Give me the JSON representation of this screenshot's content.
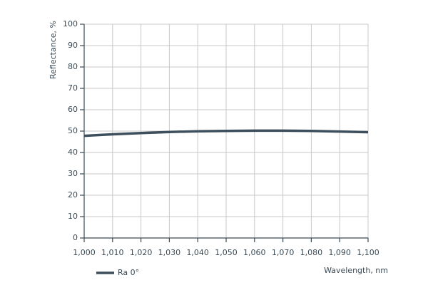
{
  "chart_data": {
    "type": "line",
    "y_label": "Reflectance, %",
    "x_label": "Wavelength, nm",
    "x": [
      1000,
      1010,
      1020,
      1030,
      1040,
      1050,
      1060,
      1070,
      1080,
      1090,
      1100
    ],
    "series": [
      {
        "name": "Ra 0°",
        "color": "#3d4f5c",
        "values": [
          47.8,
          48.5,
          49.1,
          49.6,
          49.9,
          50.1,
          50.2,
          50.2,
          50.1,
          49.8,
          49.5
        ]
      }
    ],
    "xlim": [
      1000,
      1100
    ],
    "xticks": [
      {
        "value": 1000,
        "label": "1,000"
      },
      {
        "value": 1010,
        "label": "1,010"
      },
      {
        "value": 1020,
        "label": "1,020"
      },
      {
        "value": 1030,
        "label": "1,030"
      },
      {
        "value": 1040,
        "label": "1,040"
      },
      {
        "value": 1050,
        "label": "1,050"
      },
      {
        "value": 1060,
        "label": "1,060"
      },
      {
        "value": 1070,
        "label": "1,070"
      },
      {
        "value": 1080,
        "label": "1,080"
      },
      {
        "value": 1090,
        "label": "1,090"
      },
      {
        "value": 1100,
        "label": "1,100"
      }
    ],
    "ylim": [
      0,
      100
    ],
    "yticks": [
      0,
      10,
      20,
      30,
      40,
      50,
      60,
      70,
      80,
      90,
      100
    ],
    "grid": true
  }
}
